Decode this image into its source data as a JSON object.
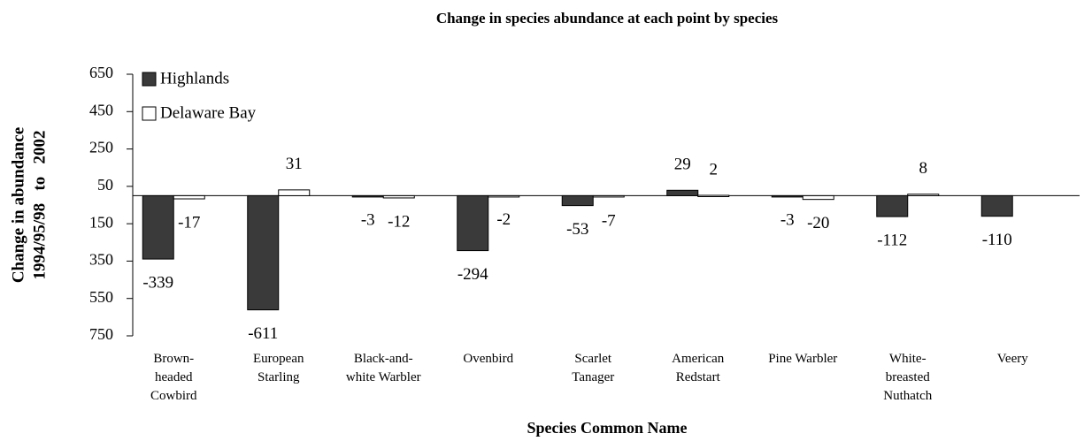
{
  "chart_data": {
    "type": "bar",
    "title": "Change in species abundance at each point by species",
    "y_label": [
      "Change in abundance",
      "1994/95/98   to   2002"
    ],
    "x_label": "Species Common Name",
    "categories": [
      "Brown-\nheaded\nCowbird",
      "European\nStarling",
      "Black-and-\nwhite Warbler",
      "Ovenbird",
      "Scarlet\nTanager",
      "American\nRedstart",
      "Pine Warbler",
      "White-\nbreasted\nNuthatch",
      "Veery"
    ],
    "series": [
      {
        "name": "Highlands",
        "color": "#3a3a3a",
        "values": [
          -339,
          -611,
          -3,
          -294,
          -53,
          29,
          -3,
          -112,
          -110
        ]
      },
      {
        "name": "Delaware Bay",
        "color": "#ffffff",
        "values": [
          -17,
          31,
          -12,
          -2,
          -7,
          2,
          -20,
          8,
          null
        ]
      }
    ],
    "ylim": [
      -750,
      650
    ],
    "yticks": [
      650,
      450,
      250,
      50,
      {
        "value": -150,
        "label": "150"
      },
      {
        "value": -350,
        "label": "350"
      },
      {
        "value": -550,
        "label": "550"
      },
      {
        "value": -750,
        "label": "750"
      }
    ],
    "grid": false,
    "legend": "upper left"
  }
}
